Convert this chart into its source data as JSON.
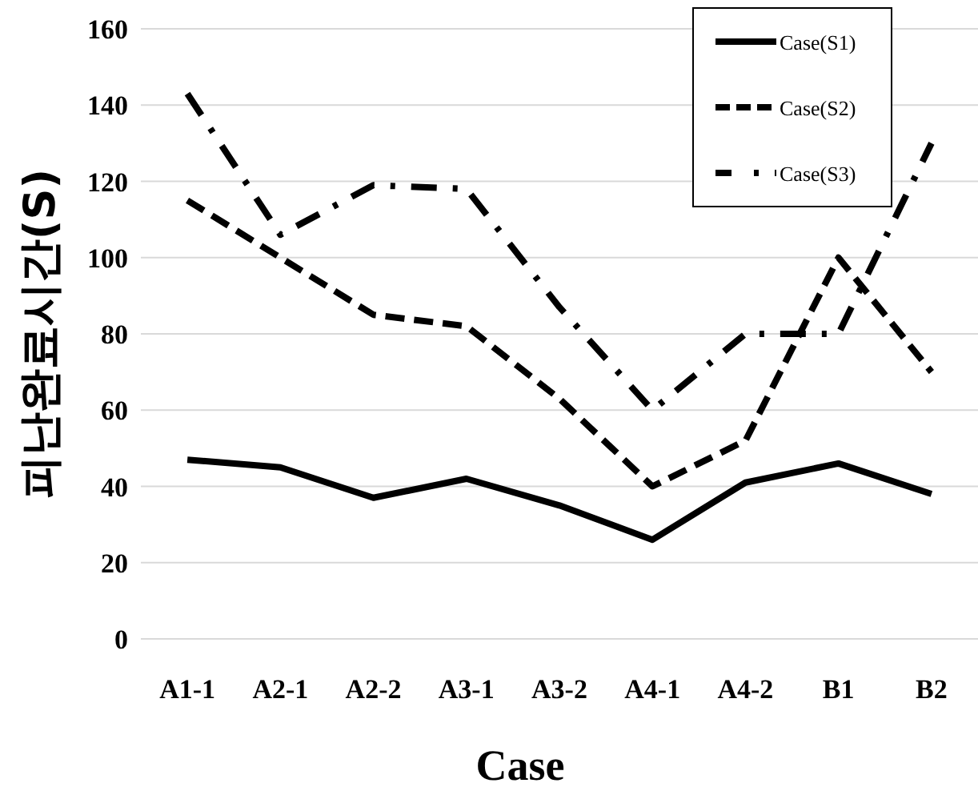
{
  "chart_data": {
    "type": "line",
    "xlabel": "Case",
    "ylabel": "피난완료시간(S)",
    "categories": [
      "A1-1",
      "A2-1",
      "A2-2",
      "A3-1",
      "A3-2",
      "A4-1",
      "A4-2",
      "B1",
      "B2"
    ],
    "ylim": [
      0,
      160
    ],
    "yticks": [
      0,
      20,
      40,
      60,
      80,
      100,
      120,
      140,
      160
    ],
    "grid": "y",
    "legend": "top right",
    "series": [
      {
        "name": "Case(S1)",
        "color": "#000000",
        "line_style": "solid",
        "values": [
          47,
          45,
          37,
          42,
          35,
          26,
          41,
          46,
          38
        ]
      },
      {
        "name": "Case(S2)",
        "color": "#000000",
        "line_style": "dashed",
        "values": [
          115,
          100,
          85,
          82,
          63,
          40,
          52,
          100,
          70
        ]
      },
      {
        "name": "Case(S3)",
        "color": "#000000",
        "line_style": "dashdot",
        "values": [
          143,
          106,
          119,
          118,
          87,
          60,
          80,
          80,
          130
        ]
      }
    ]
  }
}
